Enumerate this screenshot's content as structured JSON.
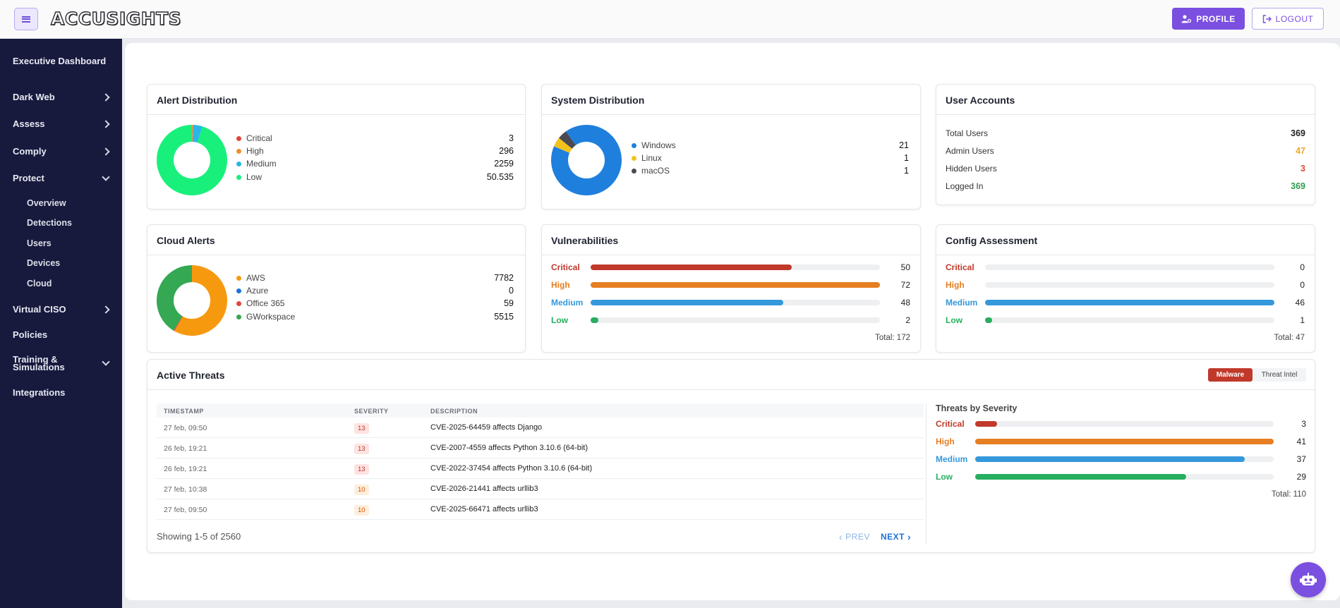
{
  "app": {
    "logo": "ACCUSIGHTS"
  },
  "topbar": {
    "profile_label": "PROFILE",
    "logout_label": "LOGOUT"
  },
  "sidebar": {
    "items": [
      {
        "label": "Executive Dashboard"
      },
      {
        "label": "Dark Web"
      },
      {
        "label": "Assess"
      },
      {
        "label": "Comply"
      },
      {
        "label": "Protect"
      },
      {
        "label": "Virtual CISO"
      },
      {
        "label": "Policies"
      },
      {
        "label": "Training &",
        "label2": "Simulations"
      },
      {
        "label": "Integrations"
      }
    ],
    "protect_sub": [
      "Overview",
      "Detections",
      "Users",
      "Devices",
      "Cloud"
    ]
  },
  "alert_distribution": {
    "title": "Alert Distribution",
    "items": [
      {
        "label": "Critical",
        "value": "3",
        "color": "#e0473a"
      },
      {
        "label": "High",
        "value": "296",
        "color": "#f0902d"
      },
      {
        "label": "Medium",
        "value": "2259",
        "color": "#29b6e8"
      },
      {
        "label": "Low",
        "value": "50.535",
        "color": "#19f07c"
      }
    ]
  },
  "system_distribution": {
    "title": "System Distribution",
    "items": [
      {
        "label": "Windows",
        "value": "21",
        "color": "#1f7fdc"
      },
      {
        "label": "Linux",
        "value": "1",
        "color": "#f4c21d"
      },
      {
        "label": "macOS",
        "value": "1",
        "color": "#4a4a52"
      }
    ]
  },
  "user_accounts": {
    "title": "User Accounts",
    "items": [
      {
        "label": "Total Users",
        "value": "369",
        "color": "#222222"
      },
      {
        "label": "Admin Users",
        "value": "47",
        "color": "#f0a52d"
      },
      {
        "label": "Hidden Users",
        "value": "3",
        "color": "#e0473a"
      },
      {
        "label": "Logged In",
        "value": "369",
        "color": "#2e9b4f"
      }
    ]
  },
  "cloud_alerts": {
    "title": "Cloud Alerts",
    "items": [
      {
        "label": "AWS",
        "value": "7782",
        "color": "#f7990f"
      },
      {
        "label": "Azure",
        "value": "0",
        "color": "#1a73d9"
      },
      {
        "label": "Office 365",
        "value": "59",
        "color": "#e0473a"
      },
      {
        "label": "GWorkspace",
        "value": "5515",
        "color": "#34a853"
      }
    ]
  },
  "vulnerabilities": {
    "title": "Vulnerabilities",
    "rows": [
      {
        "label": "Critical",
        "value": 50,
        "color": "#c0392b"
      },
      {
        "label": "High",
        "value": 72,
        "color": "#e67e22"
      },
      {
        "label": "Medium",
        "value": 48,
        "color": "#3498db"
      },
      {
        "label": "Low",
        "value": 2,
        "color": "#27ae60"
      }
    ],
    "max": 72,
    "total": "Total: 172"
  },
  "config_assessment": {
    "title": "Config Assessment",
    "rows": [
      {
        "label": "Critical",
        "value": 0,
        "color": "#c0392b"
      },
      {
        "label": "High",
        "value": 0,
        "color": "#e67e22"
      },
      {
        "label": "Medium",
        "value": 46,
        "color": "#3498db"
      },
      {
        "label": "Low",
        "value": 1,
        "color": "#27ae60"
      }
    ],
    "max": 46,
    "total": "Total: 47"
  },
  "active_threats": {
    "title": "Active Threats",
    "tabs": [
      "Malware",
      "Threat Intel"
    ],
    "columns": [
      "TIMESTAMP",
      "SEVERITY",
      "DESCRIPTION"
    ],
    "rows": [
      {
        "timestamp": "27 feb, 09:50",
        "severity": "13",
        "description": "CVE-2025-64459 affects Django"
      },
      {
        "timestamp": "26 feb, 19:21",
        "severity": "13",
        "description": "CVE-2007-4559 affects Python 3.10.6 (64-bit)"
      },
      {
        "timestamp": "26 feb, 19:21",
        "severity": "13",
        "description": "CVE-2022-37454 affects Python 3.10.6 (64-bit)"
      },
      {
        "timestamp": "27 feb, 10:38",
        "severity": "10",
        "description": "CVE-2026-21441 affects urllib3"
      },
      {
        "timestamp": "27 feb, 09:50",
        "severity": "10",
        "description": "CVE-2025-66471 affects urllib3"
      }
    ],
    "showing": "Showing 1-5 of 2560",
    "prev": "PREV",
    "next": "NEXT"
  },
  "threats_by_severity": {
    "title": "Threats by Severity",
    "rows": [
      {
        "label": "Critical",
        "value": 3,
        "color": "#c0392b"
      },
      {
        "label": "High",
        "value": 41,
        "color": "#e67e22"
      },
      {
        "label": "Medium",
        "value": 37,
        "color": "#3498db"
      },
      {
        "label": "Low",
        "value": 29,
        "color": "#27ae60"
      }
    ],
    "max": 41,
    "total": "Total: 110"
  }
}
